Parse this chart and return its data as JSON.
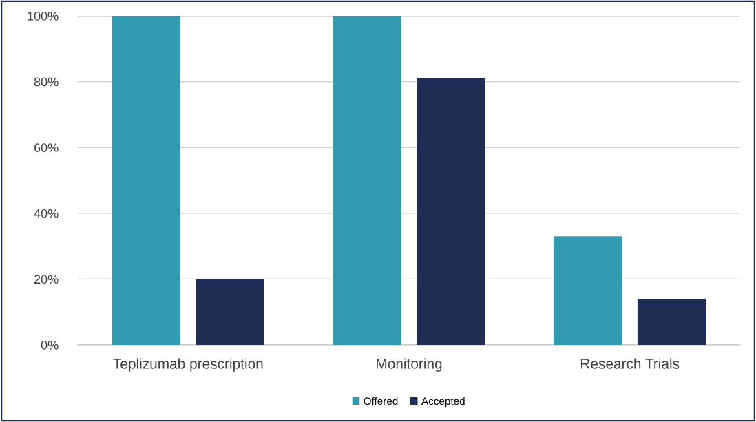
{
  "chart_data": {
    "type": "bar",
    "categories": [
      "Teplizumab prescription",
      "Monitoring",
      "Research Trials"
    ],
    "series": [
      {
        "name": "Offered",
        "color": "#329bb0",
        "values": [
          100,
          100,
          33
        ]
      },
      {
        "name": "Accepted",
        "color": "#1f2d55",
        "values": [
          20,
          81,
          14
        ]
      }
    ],
    "ylim": [
      0,
      100
    ],
    "yticks": [
      {
        "value": 0,
        "label": "0%"
      },
      {
        "value": 20,
        "label": "20%"
      },
      {
        "value": 40,
        "label": "40%"
      },
      {
        "value": 60,
        "label": "60%"
      },
      {
        "value": 80,
        "label": "80%"
      },
      {
        "value": 100,
        "label": "100%"
      }
    ],
    "grid": "y",
    "legend": "bottom"
  }
}
